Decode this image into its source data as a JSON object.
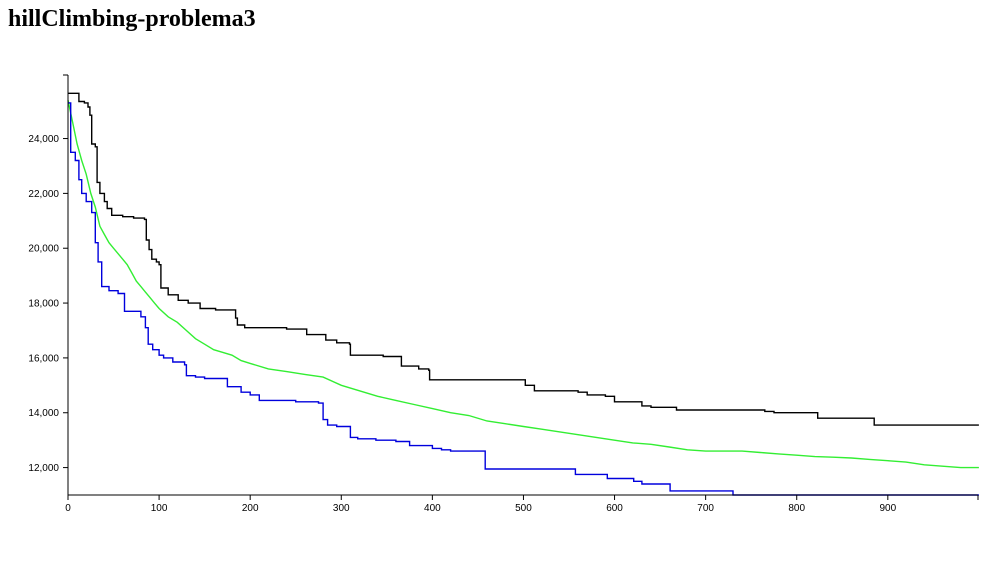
{
  "title": "hillClimbing-problema3",
  "chart_data": {
    "type": "line",
    "title": "hillClimbing-problema3",
    "xlabel": "",
    "ylabel": "",
    "xlim": [
      0,
      1000
    ],
    "ylim": [
      11000,
      26500
    ],
    "x_ticks": [
      0,
      100,
      200,
      300,
      400,
      500,
      600,
      700,
      800,
      900
    ],
    "x_tick_labels": [
      "0",
      "100",
      "200",
      "300",
      "400",
      "500",
      "600",
      "700",
      "800",
      "900"
    ],
    "y_ticks": [
      12000,
      14000,
      16000,
      18000,
      20000,
      22000,
      24000
    ],
    "y_tick_labels": [
      "12,000",
      "14,000",
      "16,000",
      "18,000",
      "20,000",
      "22,000",
      "24,000"
    ],
    "grid": false,
    "legend": "none",
    "series": [
      {
        "color": "#000000",
        "step": true,
        "points": [
          [
            0,
            25650
          ],
          [
            8,
            25650
          ],
          [
            12,
            25350
          ],
          [
            18,
            25300
          ],
          [
            22,
            25150
          ],
          [
            24,
            24850
          ],
          [
            26,
            23800
          ],
          [
            30,
            23700
          ],
          [
            32,
            22400
          ],
          [
            35,
            22000
          ],
          [
            40,
            21700
          ],
          [
            43,
            21450
          ],
          [
            48,
            21200
          ],
          [
            60,
            21150
          ],
          [
            72,
            21100
          ],
          [
            84,
            21050
          ],
          [
            86,
            20300
          ],
          [
            89,
            19950
          ],
          [
            92,
            19600
          ],
          [
            97,
            19500
          ],
          [
            100,
            19400
          ],
          [
            102,
            18550
          ],
          [
            108,
            18550
          ],
          [
            110,
            18300
          ],
          [
            121,
            18100
          ],
          [
            132,
            18000
          ],
          [
            145,
            17800
          ],
          [
            162,
            17750
          ],
          [
            184,
            17450
          ],
          [
            186,
            17200
          ],
          [
            194,
            17100
          ],
          [
            240,
            17050
          ],
          [
            262,
            16850
          ],
          [
            283,
            16650
          ],
          [
            295,
            16550
          ],
          [
            309,
            16500
          ],
          [
            310,
            16100
          ],
          [
            336,
            16100
          ],
          [
            346,
            16050
          ],
          [
            366,
            15700
          ],
          [
            385,
            15600
          ],
          [
            396,
            15550
          ],
          [
            397,
            15200
          ],
          [
            431,
            15200
          ],
          [
            432,
            15200
          ],
          [
            500,
            15200
          ],
          [
            502,
            15000
          ],
          [
            512,
            14800
          ],
          [
            560,
            14750
          ],
          [
            570,
            14650
          ],
          [
            590,
            14600
          ],
          [
            600,
            14400
          ],
          [
            627,
            14400
          ],
          [
            628,
            14400
          ],
          [
            630,
            14250
          ],
          [
            640,
            14200
          ],
          [
            666,
            14200
          ],
          [
            668,
            14100
          ],
          [
            760,
            14100
          ],
          [
            765,
            14050
          ],
          [
            775,
            14000
          ],
          [
            803,
            14000
          ],
          [
            823,
            13800
          ],
          [
            883,
            13800
          ],
          [
            885,
            13550
          ],
          [
            1000,
            13550
          ]
        ]
      },
      {
        "color": "#33ee33",
        "step": false,
        "points": [
          [
            0,
            25400
          ],
          [
            5,
            24600
          ],
          [
            10,
            23800
          ],
          [
            15,
            23200
          ],
          [
            20,
            22700
          ],
          [
            25,
            22000
          ],
          [
            30,
            21500
          ],
          [
            35,
            20800
          ],
          [
            40,
            20500
          ],
          [
            45,
            20200
          ],
          [
            50,
            20000
          ],
          [
            55,
            19800
          ],
          [
            60,
            19600
          ],
          [
            65,
            19400
          ],
          [
            70,
            19100
          ],
          [
            75,
            18800
          ],
          [
            80,
            18600
          ],
          [
            85,
            18400
          ],
          [
            90,
            18200
          ],
          [
            95,
            18000
          ],
          [
            100,
            17800
          ],
          [
            110,
            17500
          ],
          [
            120,
            17300
          ],
          [
            130,
            17000
          ],
          [
            140,
            16700
          ],
          [
            150,
            16500
          ],
          [
            160,
            16300
          ],
          [
            170,
            16200
          ],
          [
            180,
            16100
          ],
          [
            190,
            15900
          ],
          [
            200,
            15800
          ],
          [
            220,
            15600
          ],
          [
            240,
            15500
          ],
          [
            260,
            15400
          ],
          [
            280,
            15300
          ],
          [
            300,
            15000
          ],
          [
            320,
            14800
          ],
          [
            340,
            14600
          ],
          [
            360,
            14450
          ],
          [
            380,
            14300
          ],
          [
            400,
            14150
          ],
          [
            420,
            14000
          ],
          [
            440,
            13900
          ],
          [
            460,
            13700
          ],
          [
            480,
            13600
          ],
          [
            500,
            13500
          ],
          [
            520,
            13400
          ],
          [
            540,
            13300
          ],
          [
            560,
            13200
          ],
          [
            580,
            13100
          ],
          [
            600,
            13000
          ],
          [
            620,
            12900
          ],
          [
            640,
            12850
          ],
          [
            660,
            12750
          ],
          [
            680,
            12650
          ],
          [
            700,
            12600
          ],
          [
            720,
            12600
          ],
          [
            740,
            12600
          ],
          [
            760,
            12550
          ],
          [
            780,
            12500
          ],
          [
            800,
            12450
          ],
          [
            820,
            12400
          ],
          [
            840,
            12380
          ],
          [
            860,
            12350
          ],
          [
            880,
            12300
          ],
          [
            900,
            12250
          ],
          [
            920,
            12200
          ],
          [
            940,
            12100
          ],
          [
            960,
            12050
          ],
          [
            980,
            12000
          ],
          [
            1000,
            12000
          ]
        ]
      },
      {
        "color": "#0000dd",
        "step": true,
        "points": [
          [
            0,
            25300
          ],
          [
            3,
            23500
          ],
          [
            8,
            23200
          ],
          [
            12,
            22500
          ],
          [
            15,
            22000
          ],
          [
            20,
            21700
          ],
          [
            26,
            21300
          ],
          [
            30,
            20200
          ],
          [
            33,
            19500
          ],
          [
            37,
            18600
          ],
          [
            45,
            18450
          ],
          [
            55,
            18350
          ],
          [
            62,
            17700
          ],
          [
            75,
            17700
          ],
          [
            80,
            17500
          ],
          [
            85,
            17100
          ],
          [
            88,
            16500
          ],
          [
            93,
            16300
          ],
          [
            100,
            16100
          ],
          [
            105,
            16000
          ],
          [
            115,
            15850
          ],
          [
            128,
            15750
          ],
          [
            130,
            15350
          ],
          [
            140,
            15300
          ],
          [
            150,
            15250
          ],
          [
            175,
            14950
          ],
          [
            190,
            14750
          ],
          [
            200,
            14650
          ],
          [
            210,
            14450
          ],
          [
            250,
            14400
          ],
          [
            275,
            14350
          ],
          [
            280,
            13750
          ],
          [
            285,
            13550
          ],
          [
            295,
            13500
          ],
          [
            310,
            13100
          ],
          [
            318,
            13050
          ],
          [
            338,
            13000
          ],
          [
            360,
            12950
          ],
          [
            375,
            12800
          ],
          [
            400,
            12700
          ],
          [
            410,
            12650
          ],
          [
            420,
            12600
          ],
          [
            455,
            12600
          ],
          [
            458,
            11950
          ],
          [
            550,
            11950
          ],
          [
            557,
            11750
          ],
          [
            592,
            11600
          ],
          [
            621,
            11500
          ],
          [
            630,
            11400
          ],
          [
            651,
            11400
          ],
          [
            661,
            11150
          ],
          [
            726,
            11150
          ],
          [
            730,
            11000
          ],
          [
            748,
            10900
          ],
          [
            785,
            10750
          ],
          [
            791,
            10300
          ],
          [
            1000,
            10300
          ]
        ]
      }
    ]
  }
}
